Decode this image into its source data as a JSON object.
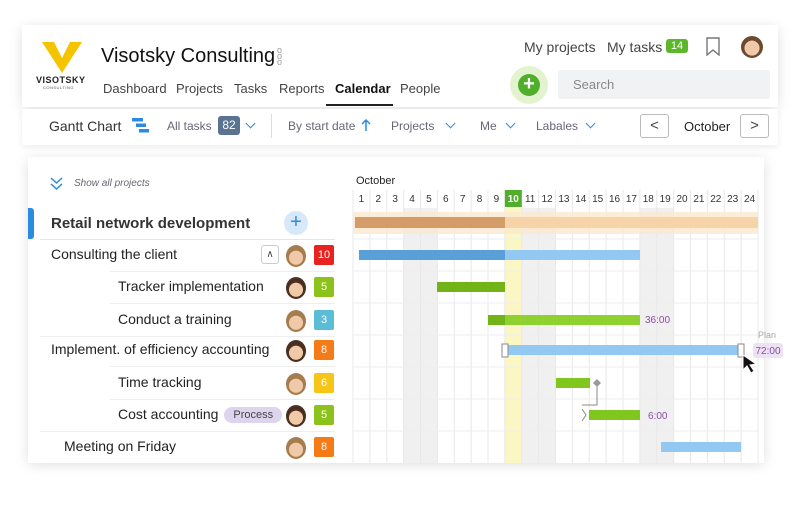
{
  "header": {
    "logo": {
      "name": "VISOTSKY",
      "tagline": "CONSULTING"
    },
    "title": "Visotsky Consulting",
    "nav": [
      "Dashboard",
      "Projects",
      "Tasks",
      "Reports",
      "Calendar",
      "People"
    ],
    "my_projects": "My projects",
    "my_tasks": "My tasks",
    "my_tasks_count": 14,
    "search": "Search"
  },
  "toolbar": {
    "view": "Gantt Chart",
    "filter": "All tasks",
    "filter_count": 82,
    "sort": "By start date",
    "projects": "Projects",
    "assignee": "Me",
    "labels": "Labales",
    "month": "October"
  },
  "panel": {
    "show_all": "Show all projects",
    "project": "Retail network development",
    "rows": [
      {
        "name": "Consulting the client",
        "count": 10,
        "color": "#e8231f"
      },
      {
        "name": "Tracker implementation",
        "count": 5,
        "color": "#8cc21c"
      },
      {
        "name": "Conduct a training",
        "count": 3,
        "color": "#5bbcd6"
      },
      {
        "name": "Implement. of efficiency accounting",
        "count": 8,
        "color": "#f47b16"
      },
      {
        "name": "Time tracking",
        "count": 6,
        "color": "#f7c518"
      },
      {
        "name": "Cost accounting",
        "tag": "Process",
        "count": 5,
        "color": "#8cc21c"
      },
      {
        "name": "Meeting on Friday",
        "count": 8,
        "color": "#f47b16"
      }
    ]
  },
  "gantt": {
    "month": "October",
    "days": [
      1,
      2,
      3,
      4,
      5,
      6,
      7,
      8,
      9,
      10,
      11,
      12,
      13,
      14,
      15,
      16,
      17,
      18,
      19,
      20,
      21,
      22,
      23,
      24
    ],
    "labels": {
      "training": "36:00",
      "plan": "Plan",
      "planned": "72:00",
      "cost": "6:00"
    }
  }
}
